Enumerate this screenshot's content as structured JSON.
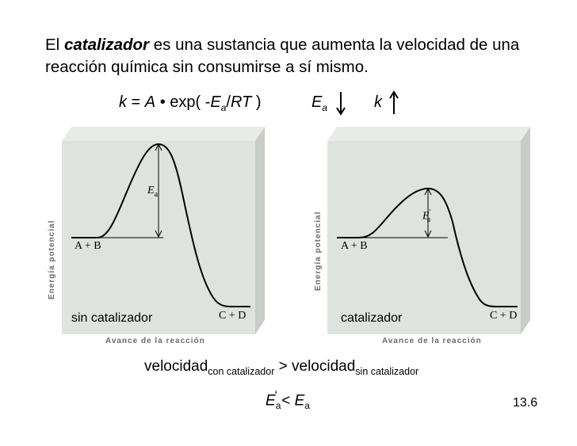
{
  "intro": {
    "prefix": "El ",
    "keyword": "catalizador",
    "rest": " es una sustancia que aumenta la velocidad de una reacción química sin consumirse a sí mismo."
  },
  "formula": {
    "k": "k",
    "eq": " = ",
    "A": "A",
    "bullet": " • ",
    "exp_open": "exp( -",
    "E": "E",
    "a_sub": "a",
    "slash": "/",
    "RT": "RT",
    "close": " )"
  },
  "trend": {
    "ea_symbol": "E",
    "ea_sub": "a",
    "ea_direction": "down",
    "k_symbol": "k",
    "k_direction": "up"
  },
  "panels": [
    {
      "y_label": "Energía potencial",
      "x_label": "Avance de la reacción",
      "reactants": "A + B",
      "products": "C + D",
      "energy_label": "E",
      "energy_sub": "a",
      "energy_prime": "",
      "caption": "sin catalizador"
    },
    {
      "y_label": "Energía potencial",
      "x_label": "Avance de la reacción",
      "reactants": "A + B",
      "products": "C + D",
      "energy_label": "E",
      "energy_sub": "a",
      "energy_prime": "′",
      "caption": "catalizador"
    }
  ],
  "rate": {
    "word": "velocidad",
    "sub_cat": "con catalizador",
    "gt": " > ",
    "sub_nocat": "sin catalizador"
  },
  "comparison": {
    "lhs_E": "E",
    "lhs_sub": "a",
    "lhs_prime": "‘",
    "lt": " < ",
    "rhs_E": "E",
    "rhs_sub": "a"
  },
  "slide_number": "13.6"
}
